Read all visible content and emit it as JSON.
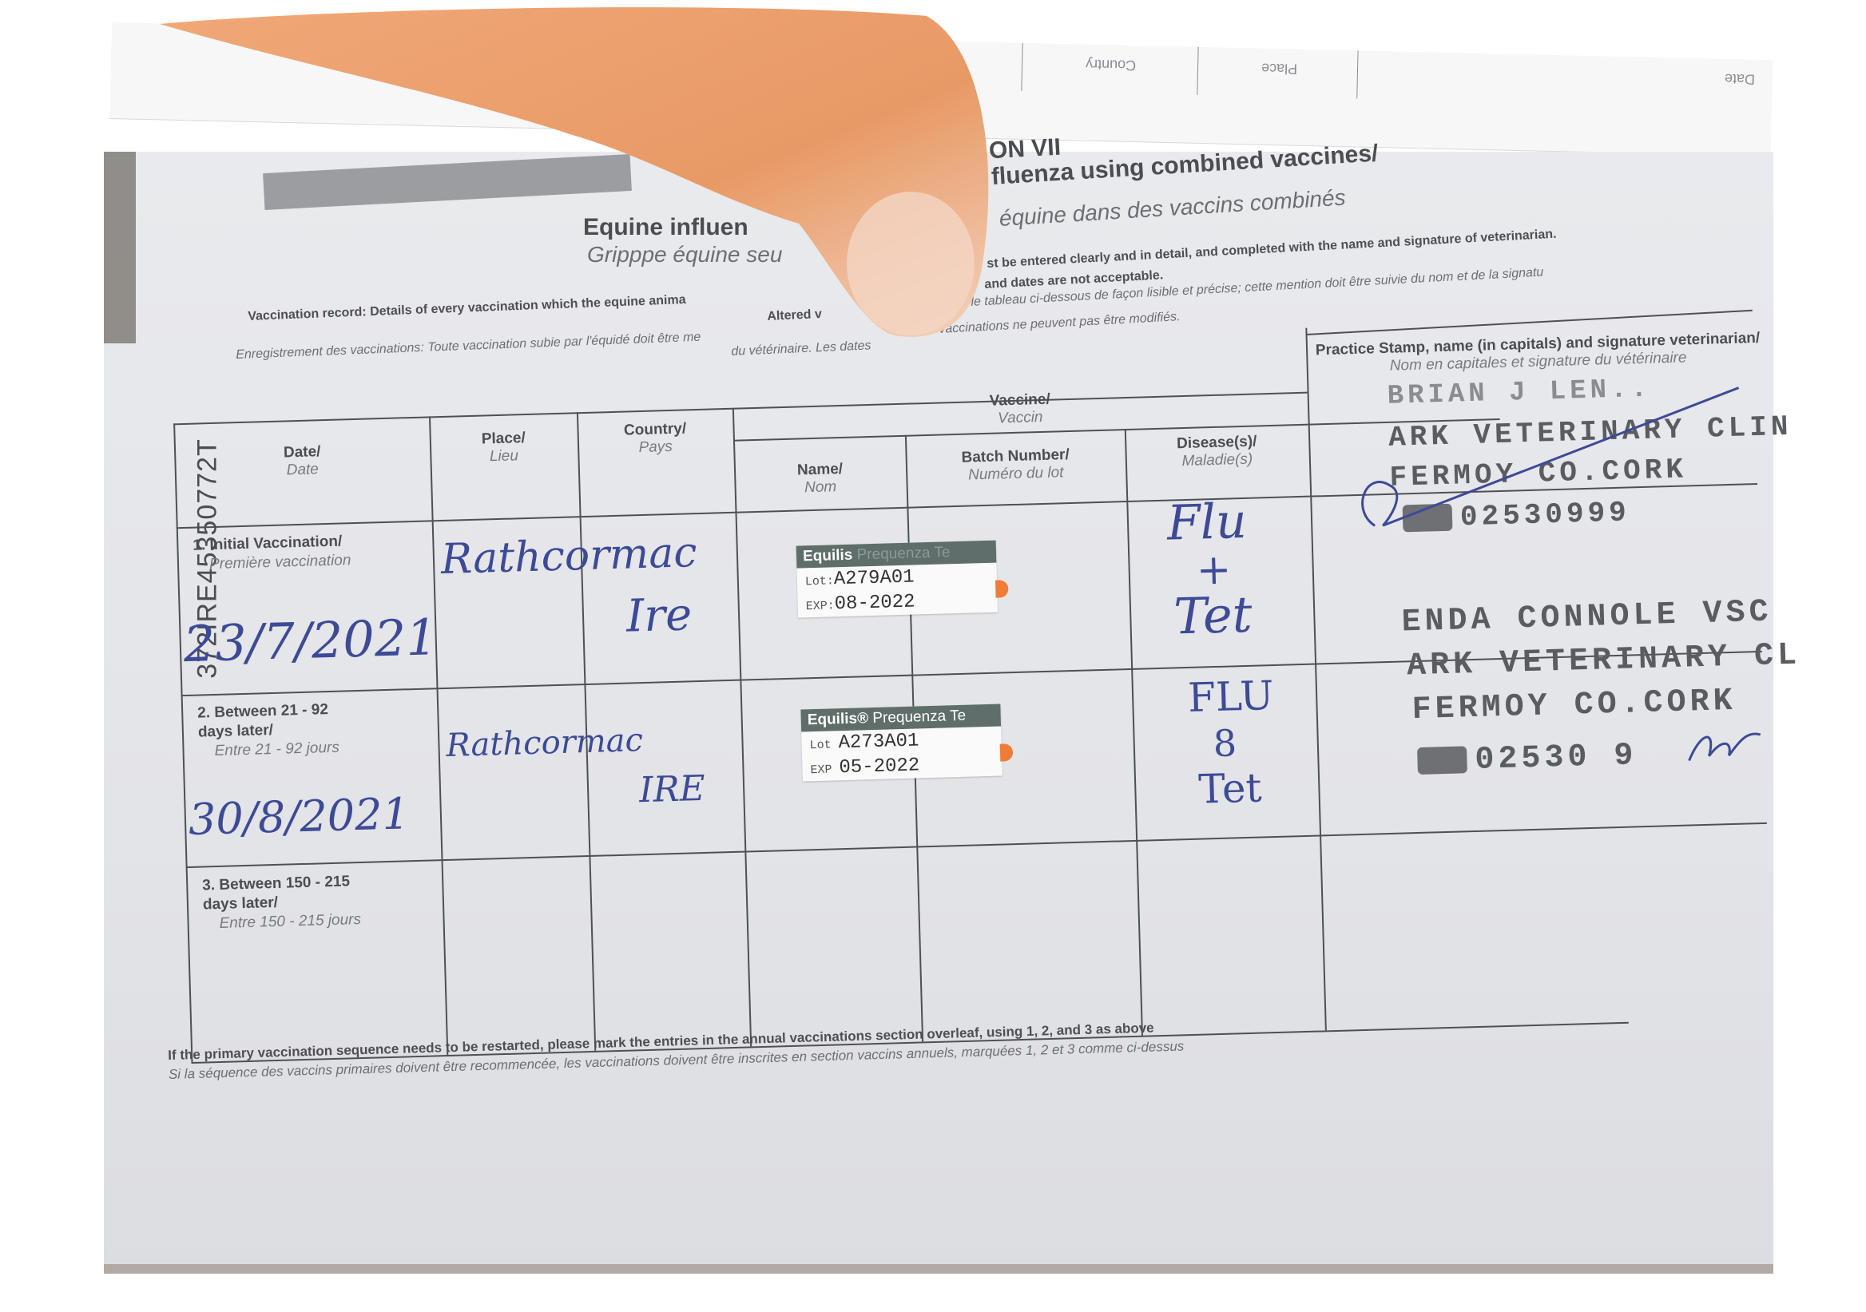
{
  "flap": {
    "headers": [
      "Country",
      "Place",
      "Date"
    ]
  },
  "page": {
    "section_fragment": "ON VII",
    "title_left": "Equine influen",
    "title_right": "fluenza using combined vaccines/",
    "subtitle_left": "Gripppe équine seu",
    "subtitle_right": "équine dans des vaccins combinés",
    "instructions_en_left": "Vaccination record: Details of every vaccination which the equine anima",
    "instructions_en_right": "st be entered clearly and in detail, and completed with the name and signature of veterinarian.",
    "instructions_en_2_left": "Altered v",
    "instructions_en_2_right": "and dates are not acceptable.",
    "instructions_fr_left": "Enregistrement des vaccinations: Toute vaccination subie par l'équidé doit être me",
    "instructions_fr_right": "le tableau ci-dessous de façon lisible et précise; cette mention doit être suivie du nom et de la signatu",
    "instructions_fr_2_left": "du vétérinaire. Les dates",
    "instructions_fr_2_right": "vaccinations ne peuvent pas être modifiés.",
    "passport_id": "372IRE45350772T"
  },
  "table": {
    "headers": {
      "date": {
        "en": "Date/",
        "fr": "Date"
      },
      "place": {
        "en": "Place/",
        "fr": "Lieu"
      },
      "country": {
        "en": "Country/",
        "fr": "Pays"
      },
      "vaccine": {
        "en": "Vaccine/",
        "fr": "Vaccin"
      },
      "name": {
        "en": "Name/",
        "fr": "Nom"
      },
      "batch": {
        "en": "Batch Number/",
        "fr": "Numéro du lot"
      },
      "disease": {
        "en": "Disease(s)/",
        "fr": "Maladie(s)"
      },
      "stamp": {
        "en": "Practice Stamp, name (in capitals) and signature veterinarian/",
        "fr": "Nom en capitales et signature du vétérinaire"
      }
    },
    "rows": [
      {
        "label_en": "1. Initial Vaccination/",
        "label_fr": "Première vaccination",
        "date": "23/7/2021",
        "place": "Rathcormac",
        "country": "Ire",
        "vaccine_label": {
          "brand": "Equilis",
          "product": "Prequenza Te",
          "lot_label": "Lot:",
          "lot": "A279A01",
          "exp_label": "EXP:",
          "exp": "08-2022"
        },
        "disease": [
          "Flu",
          "+",
          "Tet"
        ],
        "stamp": [
          "BRIAN J LEN..",
          "ARK VETERINARY CLIN",
          "FERMOY CO.CORK",
          "02530999"
        ]
      },
      {
        "label_en": "2. Between 21 - 92 days later/",
        "label_fr": "Entre 21 - 92 jours",
        "date": "30/8/2021",
        "place": "Rathcormac",
        "country": "IRE",
        "vaccine_label": {
          "brand": "Equilis®",
          "product": "Prequenza Te",
          "lot_label": "Lot",
          "lot": "A273A01",
          "exp_label": "EXP",
          "exp": "05-2022"
        },
        "disease": [
          "FLU",
          "8",
          "Tet"
        ],
        "stamp": [
          "ENDA CONNOLE  VSC",
          "ARK VETERINARY CL",
          "FERMOY CO.CORK",
          "02530 9"
        ]
      },
      {
        "label_en": "3. Between 150 - 215 days later/",
        "label_fr": "Entre 150 - 215 jours"
      }
    ]
  },
  "footnote": {
    "en": "If the primary vaccination sequence needs to be restarted, please mark the entries in the annual vaccinations section overleaf, using 1, 2, and 3 as above",
    "fr": "Si la séquence des vaccins primaires doivent être recommencée, les vaccinations doivent être inscrites en section vaccins annuels, marquées 1, 2 et 3 comme ci-dessus"
  },
  "colors": {
    "ink_blue": "#3d4a96",
    "label_green": "#5f6e6a",
    "label_tab_orange": "#f07c3a",
    "finger": "#e8a070"
  }
}
